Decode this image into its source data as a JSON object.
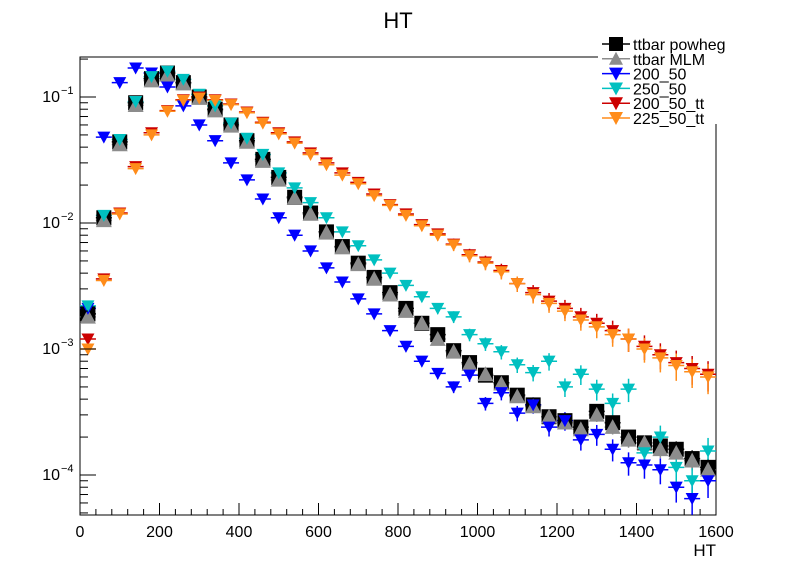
{
  "chart_data": {
    "type": "scatter",
    "title": "HT",
    "xlabel": "HT",
    "ylabel": "",
    "xlim": [
      0,
      1600
    ],
    "ylim": [
      5e-05,
      0.2
    ],
    "yscale": "log",
    "x_ticks": [
      0,
      200,
      400,
      600,
      800,
      1000,
      1200,
      1400,
      1600
    ],
    "y_ticks": [
      {
        "value": 0.1,
        "base": "10",
        "exp": "−1"
      },
      {
        "value": 0.01,
        "base": "10",
        "exp": "−2"
      },
      {
        "value": 0.001,
        "base": "10",
        "exp": "−3"
      },
      {
        "value": 0.0001,
        "base": "10",
        "exp": "−4"
      }
    ],
    "grid": false,
    "legend_position": "top-right",
    "x": [
      20,
      60,
      100,
      140,
      180,
      220,
      260,
      300,
      340,
      380,
      420,
      460,
      500,
      540,
      580,
      620,
      660,
      700,
      740,
      780,
      820,
      860,
      900,
      940,
      980,
      1020,
      1060,
      1100,
      1140,
      1180,
      1220,
      1260,
      1300,
      1340,
      1380,
      1420,
      1460,
      1500,
      1540,
      1580
    ],
    "series": [
      {
        "name": "ttbar powheg",
        "marker": "square",
        "color": "#000000",
        "values": [
          0.0019,
          0.011,
          0.044,
          0.09,
          0.14,
          0.155,
          0.13,
          0.1,
          0.08,
          0.06,
          0.045,
          0.032,
          0.023,
          0.016,
          0.012,
          0.0085,
          0.0065,
          0.0048,
          0.0037,
          0.0028,
          0.0021,
          0.0016,
          0.0013,
          0.00097,
          0.00078,
          0.00062,
          0.00054,
          0.00043,
          0.00036,
          0.00029,
          0.00027,
          0.00024,
          0.00032,
          0.00026,
          0.0002,
          0.00018,
          0.00017,
          0.00016,
          0.000135,
          0.000115
        ]
      },
      {
        "name": "ttbar MLM",
        "marker": "triangle-up",
        "color": "#8c8c8c",
        "values": [
          0.0018,
          0.0105,
          0.042,
          0.086,
          0.135,
          0.15,
          0.128,
          0.098,
          0.078,
          0.059,
          0.044,
          0.031,
          0.022,
          0.0158,
          0.0118,
          0.0084,
          0.0064,
          0.0047,
          0.0036,
          0.0027,
          0.002,
          0.0016,
          0.0012,
          0.00095,
          0.00076,
          0.00063,
          0.00053,
          0.00042,
          0.00035,
          0.00029,
          0.00026,
          0.00023,
          0.0003,
          0.00024,
          0.00019,
          0.00018,
          0.00016,
          0.00015,
          0.00013,
          0.00011
        ]
      },
      {
        "name": "200_50",
        "marker": "triangle-down",
        "color": "#0000ff",
        "values": [
          0.0021,
          0.048,
          0.13,
          0.17,
          0.155,
          0.12,
          0.085,
          0.06,
          0.045,
          0.03,
          0.022,
          0.0155,
          0.011,
          0.008,
          0.006,
          0.0044,
          0.0034,
          0.0025,
          0.0019,
          0.0014,
          0.00105,
          0.0008,
          0.00064,
          0.0005,
          0.00062,
          0.00037,
          0.00045,
          0.00031,
          0.00036,
          0.00024,
          0.00027,
          0.00019,
          0.00021,
          0.00016,
          0.000125,
          0.00012,
          0.00011,
          8e-05,
          6.5e-05,
          9e-05
        ]
      },
      {
        "name": "250_50",
        "marker": "triangle-down",
        "color": "#00c0c0",
        "values": [
          0.0022,
          0.0115,
          0.046,
          0.092,
          0.145,
          0.16,
          0.138,
          0.105,
          0.085,
          0.062,
          0.047,
          0.035,
          0.025,
          0.019,
          0.0145,
          0.011,
          0.0085,
          0.0066,
          0.0051,
          0.004,
          0.0032,
          0.0026,
          0.0021,
          0.0018,
          0.0013,
          0.0011,
          0.00095,
          0.00075,
          0.00065,
          0.0008,
          0.0005,
          0.00063,
          0.00048,
          0.00037,
          0.00048,
          0.00015,
          0.0002,
          0.000115,
          9e-05,
          0.000155
        ]
      },
      {
        "name": "200_50_tt",
        "marker": "triangle-down",
        "color": "#cc0000",
        "values": [
          0.0012,
          0.0036,
          0.012,
          0.028,
          0.052,
          0.078,
          0.095,
          0.1,
          0.095,
          0.088,
          0.076,
          0.063,
          0.052,
          0.044,
          0.036,
          0.03,
          0.025,
          0.021,
          0.017,
          0.014,
          0.0118,
          0.0097,
          0.0082,
          0.0068,
          0.0056,
          0.0049,
          0.0042,
          0.0033,
          0.0028,
          0.0024,
          0.0021,
          0.0018,
          0.0016,
          0.0014,
          0.0012,
          0.00105,
          0.0009,
          0.00078,
          0.0007,
          0.00063
        ]
      },
      {
        "name": "225_50_tt",
        "marker": "triangle-down",
        "color": "#ff8c1a",
        "values": [
          0.001,
          0.0035,
          0.0118,
          0.027,
          0.05,
          0.077,
          0.094,
          0.098,
          0.094,
          0.087,
          0.075,
          0.062,
          0.051,
          0.043,
          0.035,
          0.029,
          0.024,
          0.0205,
          0.0165,
          0.0138,
          0.0115,
          0.0095,
          0.008,
          0.0067,
          0.0055,
          0.0048,
          0.0041,
          0.0033,
          0.0027,
          0.0023,
          0.002,
          0.0017,
          0.0015,
          0.0013,
          0.0012,
          0.001,
          0.00085,
          0.00074,
          0.00066,
          0.0006
        ]
      }
    ]
  }
}
